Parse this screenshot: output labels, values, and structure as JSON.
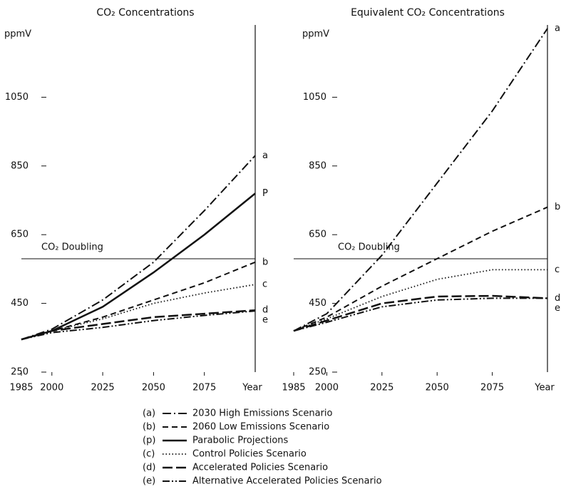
{
  "chart_data": [
    {
      "type": "line",
      "title": "CO₂ Concentrations",
      "ylabel": "ppmV",
      "xlabel": "Year",
      "x": [
        1985,
        2000,
        2025,
        2050,
        2075,
        2100
      ],
      "xlim": [
        1985,
        2100
      ],
      "xticks": [
        1985,
        2000,
        2025,
        2050,
        2075
      ],
      "ylim": [
        250,
        1250
      ],
      "yticks": [
        250,
        450,
        650,
        850,
        1050
      ],
      "reference_line": {
        "text": "CO₂ Doubling",
        "value": 580
      },
      "series": [
        {
          "name": "2030 High Emissions Scenario",
          "key": "(a)",
          "label": "a",
          "color": "#111111",
          "dash": "12,4,2,4",
          "width": 2,
          "values": [
            345,
            375,
            460,
            570,
            720,
            880
          ]
        },
        {
          "name": "2060 Low Emissions Scenario",
          "key": "(b)",
          "label": "b",
          "color": "#111111",
          "dash": "8,5",
          "width": 2,
          "values": [
            345,
            370,
            410,
            460,
            510,
            570
          ]
        },
        {
          "name": "Parabolic Projections",
          "key": "(p)",
          "label": "P",
          "color": "#111111",
          "dash": "none",
          "width": 2.5,
          "values": [
            345,
            370,
            440,
            540,
            650,
            770
          ]
        },
        {
          "name": "Control Policies Scenario",
          "key": "(c)",
          "label": "c",
          "color": "#111111",
          "dash": "1.5,3",
          "width": 1.8,
          "values": [
            345,
            370,
            405,
            450,
            480,
            505
          ]
        },
        {
          "name": "Accelerated Policies Scenario",
          "key": "(d)",
          "label": "d",
          "color": "#111111",
          "dash": "14,5",
          "width": 2.5,
          "values": [
            345,
            370,
            390,
            410,
            420,
            430
          ]
        },
        {
          "name": "Alternative Accelerated Policies Scenario",
          "key": "(e)",
          "label": "e",
          "color": "#111111",
          "dash": "10,3,2,3,2,3",
          "width": 2,
          "values": [
            345,
            365,
            380,
            400,
            415,
            428
          ]
        }
      ]
    },
    {
      "type": "line",
      "title": "Equivalent CO₂ Concentrations",
      "ylabel": "ppmV",
      "xlabel": "Year",
      "x": [
        1985,
        2000,
        2025,
        2050,
        2075,
        2100
      ],
      "xlim": [
        1985,
        2100
      ],
      "xticks": [
        1985,
        2000,
        2025,
        2050,
        2075
      ],
      "ylim": [
        250,
        1250
      ],
      "yticks": [
        250,
        450,
        650,
        850,
        1050
      ],
      "reference_line": {
        "text": "CO₂ Doubling",
        "value": 580
      },
      "series": [
        {
          "label": "a",
          "color": "#111111",
          "dash": "12,4,2,4",
          "width": 2,
          "values": [
            370,
            420,
            590,
            800,
            1010,
            1250
          ]
        },
        {
          "label": "b",
          "color": "#111111",
          "dash": "8,5",
          "width": 2,
          "values": [
            370,
            410,
            500,
            580,
            660,
            730
          ]
        },
        {
          "label": "c",
          "color": "#111111",
          "dash": "1.5,3",
          "width": 1.8,
          "values": [
            370,
            405,
            470,
            520,
            548,
            548
          ]
        },
        {
          "label": "d",
          "color": "#111111",
          "dash": "14,5",
          "width": 2.5,
          "values": [
            370,
            400,
            450,
            470,
            472,
            465
          ]
        },
        {
          "label": "e",
          "color": "#111111",
          "dash": "10,3,2,3,2,3",
          "width": 2,
          "values": [
            370,
            395,
            440,
            460,
            465,
            465
          ]
        }
      ]
    }
  ]
}
